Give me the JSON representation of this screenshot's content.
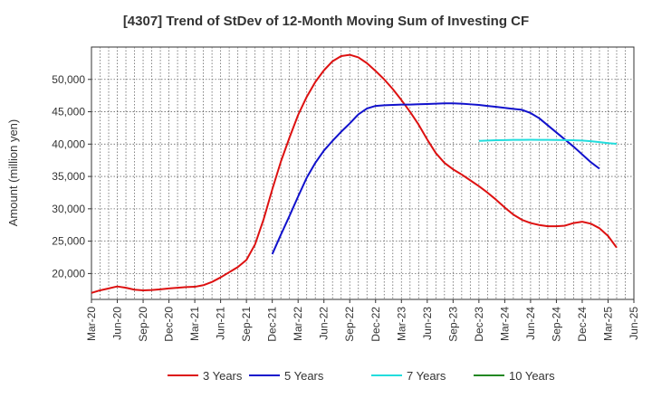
{
  "chart_data": {
    "type": "line",
    "title": "[4307]  Trend of StDev of 12-Month Moving Sum of Investing CF",
    "ylabel": "Amount (million yen)",
    "xlabel": "",
    "ylim": [
      16000,
      55000
    ],
    "yticks": [
      20000,
      25000,
      30000,
      35000,
      40000,
      45000,
      50000
    ],
    "ytick_labels": [
      "20,000",
      "25,000",
      "30,000",
      "35,000",
      "40,000",
      "45,000",
      "50,000"
    ],
    "x_tick_labels": [
      "Mar-20",
      "Jun-20",
      "Sep-20",
      "Dec-20",
      "Mar-21",
      "Jun-21",
      "Sep-21",
      "Dec-21",
      "Mar-22",
      "Jun-22",
      "Sep-22",
      "Dec-22",
      "Mar-23",
      "Jun-23",
      "Sep-23",
      "Dec-23",
      "Mar-24",
      "Jun-24",
      "Sep-24",
      "Dec-24",
      "Mar-25",
      "Jun-25"
    ],
    "grid": true,
    "legend_position": "bottom",
    "series": [
      {
        "name": "3 Years",
        "color": "#dd1111",
        "start_month": 0,
        "values": [
          17000,
          17400,
          17700,
          18000,
          17800,
          17500,
          17400,
          17450,
          17550,
          17700,
          17800,
          17900,
          17950,
          18200,
          18700,
          19400,
          20200,
          21000,
          22100,
          24500,
          28400,
          33000,
          37300,
          41000,
          44500,
          47300,
          49600,
          51400,
          52800,
          53600,
          53800,
          53400,
          52500,
          51300,
          50000,
          48500,
          46800,
          45000,
          43000,
          40700,
          38600,
          37100,
          36100,
          35300,
          34400,
          33500,
          32500,
          31400,
          30200,
          29100,
          28300,
          27800,
          27500,
          27300,
          27300,
          27400,
          27800,
          28000,
          27700,
          27000,
          25800,
          24000
        ]
      },
      {
        "name": "5 Years",
        "color": "#1111cc",
        "start_month": 21,
        "values": [
          23000,
          26000,
          28900,
          31900,
          34800,
          37100,
          39000,
          40500,
          41900,
          43200,
          44600,
          45500,
          45900,
          46000,
          46050,
          46100,
          46100,
          46150,
          46200,
          46250,
          46300,
          46300,
          46250,
          46150,
          46050,
          45900,
          45750,
          45600,
          45450,
          45300,
          44800,
          44000,
          42900,
          41800,
          40700,
          39600,
          38400,
          37200,
          36200
        ]
      },
      {
        "name": "7 Years",
        "color": "#22dddd",
        "start_month": 45,
        "values": [
          40500,
          40550,
          40600,
          40620,
          40650,
          40660,
          40670,
          40660,
          40650,
          40640,
          40620,
          40600,
          40550,
          40450,
          40300,
          40150,
          40050
        ]
      },
      {
        "name": "10 Years",
        "color": "#228822",
        "start_month": 0,
        "values": []
      }
    ]
  }
}
